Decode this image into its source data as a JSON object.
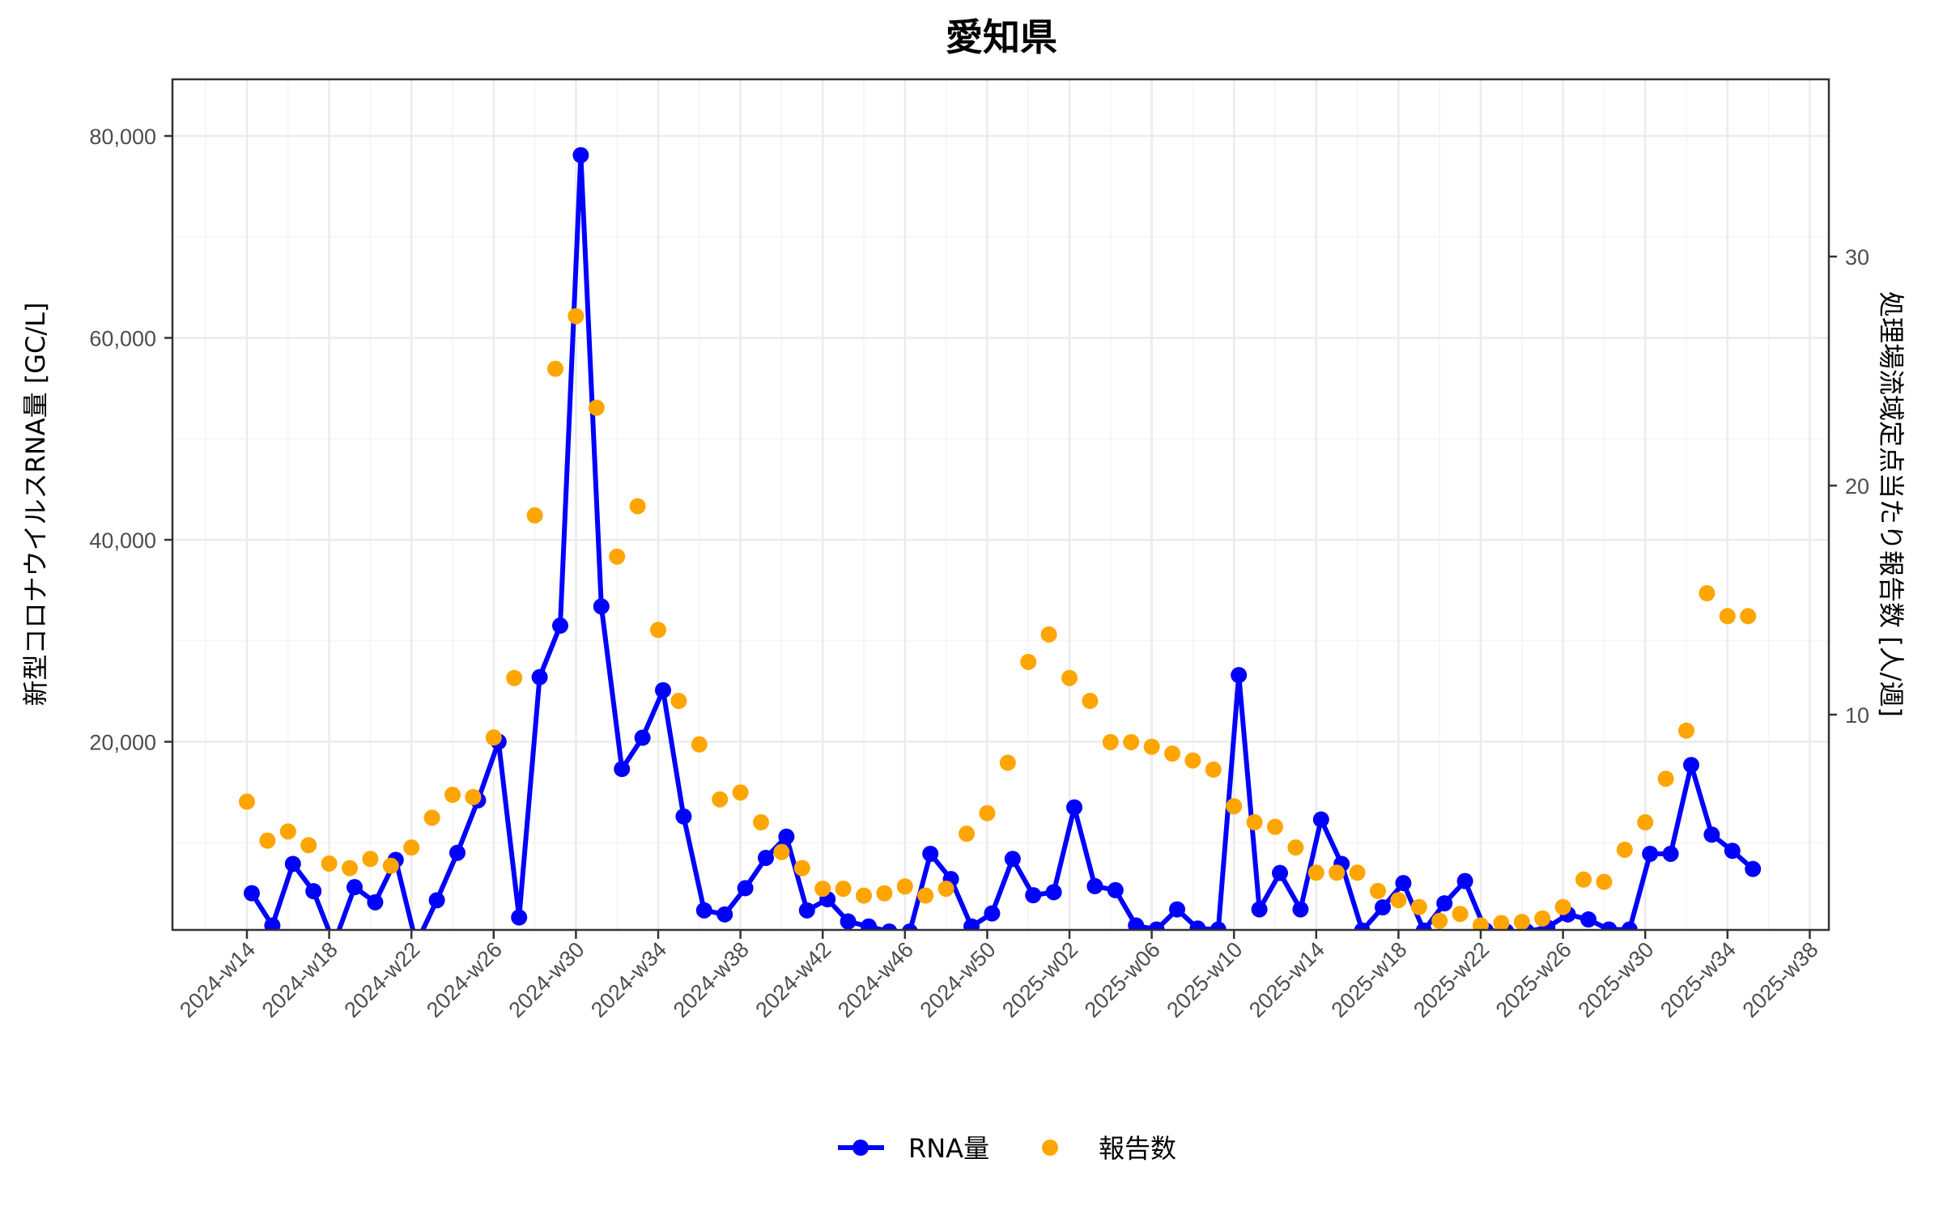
{
  "title": "愛知県",
  "y_left_label": "新型コロナウイルスRNA量 [GC/L]",
  "y_right_label": "処理場流域定点当たり報告数 [人/週]",
  "legend": {
    "rna_label": "RNA量",
    "report_label": "報告数"
  },
  "colors": {
    "rna": "#0000FF",
    "report": "#FFA500",
    "grid_major": "#EBEBEB",
    "grid_minor": "#F4F4F4",
    "axis": "#333333"
  },
  "chart_data": {
    "type": "line",
    "title": "愛知県",
    "xlabel": "",
    "ylabel": "新型コロナウイルスRNA量 [GC/L]",
    "y2label": "処理場流域定点当たり報告数 [人/週]",
    "ylim": [
      0,
      85000
    ],
    "y2lim": [
      0,
      37
    ],
    "y_ticks": [
      "20,000",
      "40,000",
      "60,000",
      "80,000"
    ],
    "y2_ticks": [
      "10",
      "20",
      "30"
    ],
    "x_tick_labels": [
      "2024-w14",
      "2024-w18",
      "2024-w22",
      "2024-w26",
      "2024-w30",
      "2024-w34",
      "2024-w38",
      "2024-w42",
      "2024-w46",
      "2024-w50",
      "2025-w02",
      "2025-w06",
      "2025-w10",
      "2025-w14",
      "2025-w18",
      "2025-w22",
      "2025-w26",
      "2025-w30",
      "2025-w34",
      "2025-w38"
    ],
    "grid": true,
    "legend_position": "bottom",
    "x": [
      "2024-w14",
      "2024-w15",
      "2024-w16",
      "2024-w17",
      "2024-w18",
      "2024-w19",
      "2024-w20",
      "2024-w21",
      "2024-w22",
      "2024-w23",
      "2024-w24",
      "2024-w25",
      "2024-w26",
      "2024-w27",
      "2024-w28",
      "2024-w29",
      "2024-w30",
      "2024-w31",
      "2024-w32",
      "2024-w33",
      "2024-w34",
      "2024-w35",
      "2024-w36",
      "2024-w37",
      "2024-w38",
      "2024-w39",
      "2024-w40",
      "2024-w41",
      "2024-w42",
      "2024-w43",
      "2024-w44",
      "2024-w45",
      "2024-w46",
      "2024-w47",
      "2024-w48",
      "2024-w49",
      "2024-w50",
      "2024-w51",
      "2024-w52",
      "2025-w01",
      "2025-w02",
      "2025-w03",
      "2025-w04",
      "2025-w05",
      "2025-w06",
      "2025-w07",
      "2025-w08",
      "2025-w09",
      "2025-w10",
      "2025-w11",
      "2025-w12",
      "2025-w13",
      "2025-w14",
      "2025-w15",
      "2025-w16",
      "2025-w17",
      "2025-w18",
      "2025-w19",
      "2025-w20",
      "2025-w21",
      "2025-w22",
      "2025-w23",
      "2025-w24",
      "2025-w25",
      "2025-w26",
      "2025-w27",
      "2025-w28",
      "2025-w29",
      "2025-w30",
      "2025-w31",
      "2025-w32",
      "2025-w33",
      "2025-w34",
      "2025-w35"
    ],
    "series": [
      {
        "name": "RNA量",
        "axis": "left",
        "style": "line+points",
        "values": [
          5000,
          1800,
          7900,
          5200,
          0,
          5600,
          4100,
          8300,
          0,
          4300,
          9000,
          14200,
          20000,
          2600,
          26400,
          31500,
          78100,
          33400,
          17300,
          20400,
          25100,
          12600,
          3300,
          2900,
          5500,
          8500,
          10600,
          3300,
          4400,
          2200,
          1700,
          1200,
          1200,
          8900,
          6400,
          1700,
          3000,
          8400,
          4800,
          5100,
          13500,
          5700,
          5300,
          1800,
          1400,
          3400,
          1500,
          1400,
          26600,
          3400,
          7000,
          3400,
          12300,
          7900,
          1300,
          3600,
          6000,
          1300,
          4000,
          6200,
          1300,
          1200,
          1200,
          1600,
          2900,
          2400,
          1400,
          1400,
          8900,
          8900,
          17700,
          10800,
          9200,
          7400
        ]
      },
      {
        "name": "報告数",
        "axis": "right",
        "style": "points",
        "values": [
          6.2,
          4.5,
          4.9,
          4.3,
          3.5,
          3.3,
          3.7,
          3.4,
          4.2,
          5.5,
          6.5,
          6.4,
          9.0,
          11.6,
          18.7,
          25.1,
          27.4,
          23.4,
          16.9,
          19.1,
          13.7,
          10.6,
          8.7,
          6.3,
          6.6,
          5.3,
          4.0,
          3.3,
          2.4,
          2.4,
          2.1,
          2.2,
          2.5,
          2.1,
          2.4,
          4.8,
          5.7,
          7.9,
          12.3,
          13.5,
          11.6,
          10.6,
          8.8,
          8.8,
          8.6,
          8.3,
          8.0,
          7.6,
          6.0,
          5.3,
          5.1,
          4.2,
          3.1,
          3.1,
          3.1,
          2.3,
          1.9,
          1.6,
          1.0,
          1.3,
          0.8,
          0.9,
          0.95,
          1.1,
          1.6,
          2.8,
          2.7,
          4.1,
          5.3,
          7.2,
          9.3,
          15.3,
          14.3,
          14.3
        ]
      }
    ]
  }
}
